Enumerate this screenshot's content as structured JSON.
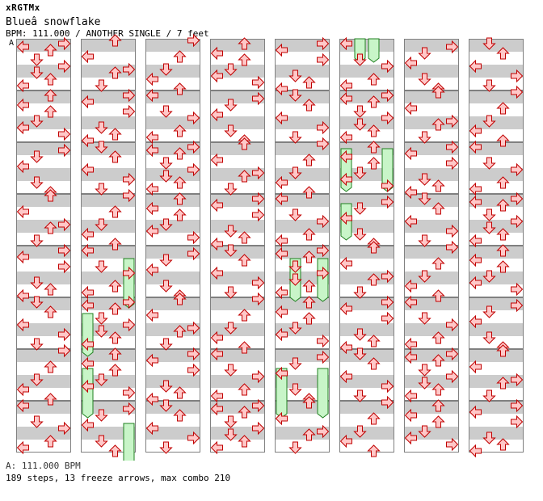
{
  "header": {
    "brand": "xRGTMx",
    "title": "Blueâ  snowflake",
    "info": "BPM: 111.000 / ANOTHER SINGLE / 7 feet"
  },
  "bpm_marker": "A",
  "colors": {
    "stripe_dark": "#cccccc",
    "stripe_light": "#ffffff",
    "arrow_fill": "#ffc8c8",
    "arrow_stroke": "#c00000",
    "freeze_fill": "#c8f5c8",
    "freeze_stroke": "#208020",
    "border": "#808080"
  },
  "chart": {
    "columns": 8,
    "measures_per_column": 8,
    "steps_per_measure": 16,
    "lanes": [
      "left",
      "down",
      "up",
      "right"
    ],
    "notes": [
      [
        [
          0,
          2,
          0
        ],
        [
          1,
          2,
          8
        ],
        [
          2,
          2,
          0
        ],
        [
          3,
          2,
          4
        ],
        [
          4,
          2,
          4
        ],
        [
          5,
          2,
          8
        ],
        [
          6,
          2,
          4
        ],
        [
          7,
          2,
          0
        ]
      ],
      [
        [
          0,
          0,
          4
        ],
        [
          0,
          1,
          8
        ],
        [
          0,
          2,
          4
        ],
        [
          0,
          3,
          2
        ],
        [
          1,
          0,
          4
        ],
        [
          1,
          1,
          8
        ],
        [
          1,
          2,
          4
        ],
        [
          1,
          3,
          4
        ],
        [
          2,
          0,
          4
        ],
        [
          2,
          1,
          8
        ],
        [
          2,
          2,
          4
        ],
        [
          2,
          3,
          2
        ],
        [
          3,
          0,
          4
        ],
        [
          3,
          1,
          8
        ],
        [
          3,
          2,
          4
        ],
        [
          3,
          3,
          4
        ],
        [
          4,
          0,
          4
        ],
        [
          4,
          1,
          8
        ],
        [
          4,
          2,
          4
        ],
        [
          4,
          3,
          4
        ],
        [
          5,
          0,
          4
        ],
        [
          5,
          1,
          8
        ],
        [
          5,
          2,
          4
        ],
        [
          5,
          3,
          4
        ],
        [
          6,
          0,
          4
        ],
        [
          6,
          1,
          8
        ],
        [
          6,
          2,
          4
        ],
        [
          6,
          3,
          4
        ],
        [
          7,
          0,
          4
        ],
        [
          7,
          1,
          4
        ],
        [
          7,
          2,
          4
        ],
        [
          7,
          3,
          4
        ]
      ],
      [
        [
          0,
          2,
          4
        ],
        [
          0,
          3,
          4
        ],
        [
          1,
          0,
          8
        ],
        [
          1,
          1,
          4
        ],
        [
          1,
          2,
          4
        ],
        [
          1,
          3,
          8
        ],
        [
          2,
          0,
          4
        ],
        [
          2,
          1,
          4
        ],
        [
          2,
          2,
          4
        ],
        [
          2,
          3,
          8
        ],
        [
          3,
          0,
          4
        ],
        [
          3,
          1,
          4
        ],
        [
          3,
          2,
          4
        ],
        [
          3,
          3,
          4
        ],
        [
          4,
          0,
          8
        ],
        [
          4,
          1,
          4
        ],
        [
          4,
          2,
          4
        ],
        [
          4,
          3,
          4
        ],
        [
          5,
          0,
          8
        ],
        [
          5,
          1,
          4
        ],
        [
          5,
          2,
          4
        ],
        [
          5,
          3,
          4
        ],
        [
          6,
          0,
          8
        ],
        [
          6,
          1,
          4
        ],
        [
          6,
          2,
          4
        ],
        [
          6,
          3,
          4
        ],
        [
          7,
          0,
          8
        ],
        [
          7,
          1,
          8
        ],
        [
          7,
          2,
          4
        ],
        [
          7,
          3,
          4
        ]
      ],
      [
        [
          0,
          0,
          8
        ],
        [
          0,
          1,
          4
        ],
        [
          0,
          2,
          4
        ],
        [
          0,
          3,
          4
        ],
        [
          1,
          0,
          4
        ],
        [
          1,
          1,
          4
        ],
        [
          1,
          2,
          4
        ],
        [
          1,
          3,
          4
        ],
        [
          2,
          0,
          4
        ],
        [
          2,
          1,
          8
        ],
        [
          2,
          2,
          4
        ],
        [
          2,
          3,
          4
        ],
        [
          3,
          0,
          8
        ],
        [
          3,
          1,
          4
        ],
        [
          3,
          2,
          4
        ],
        [
          3,
          3,
          4
        ],
        [
          4,
          0,
          4
        ],
        [
          4,
          1,
          4
        ],
        [
          4,
          2,
          4
        ],
        [
          4,
          3,
          4
        ],
        [
          5,
          0,
          4
        ],
        [
          5,
          1,
          4
        ],
        [
          5,
          2,
          4
        ],
        [
          5,
          3,
          4
        ],
        [
          6,
          0,
          4
        ],
        [
          6,
          1,
          4
        ],
        [
          6,
          2,
          4
        ],
        [
          6,
          3,
          4
        ],
        [
          7,
          0,
          4
        ],
        [
          7,
          1,
          4
        ],
        [
          7,
          2,
          4
        ],
        [
          7,
          3,
          4
        ]
      ],
      [
        [
          0,
          0,
          4
        ],
        [
          0,
          1,
          4
        ],
        [
          0,
          2,
          4
        ],
        [
          0,
          3,
          4
        ],
        [
          1,
          0,
          4
        ],
        [
          1,
          1,
          4
        ],
        [
          1,
          2,
          4
        ],
        [
          1,
          3,
          4
        ],
        [
          2,
          0,
          4
        ],
        [
          2,
          1,
          4
        ],
        [
          2,
          2,
          4
        ],
        [
          2,
          3,
          4
        ],
        [
          3,
          0,
          4
        ],
        [
          3,
          1,
          4
        ],
        [
          3,
          2,
          4
        ],
        [
          3,
          3,
          4
        ],
        [
          4,
          0,
          4
        ],
        [
          4,
          1,
          4
        ],
        [
          4,
          2,
          4
        ],
        [
          4,
          3,
          4
        ],
        [
          5,
          0,
          4
        ],
        [
          5,
          1,
          4
        ],
        [
          5,
          2,
          4
        ],
        [
          5,
          3,
          4
        ],
        [
          6,
          0,
          4
        ],
        [
          6,
          1,
          4
        ],
        [
          6,
          2,
          4
        ],
        [
          6,
          3,
          4
        ],
        [
          7,
          0,
          4
        ],
        [
          7,
          1,
          4
        ],
        [
          7,
          2,
          4
        ],
        [
          7,
          3,
          4
        ]
      ],
      [
        [
          0,
          0,
          4
        ],
        [
          0,
          1,
          4
        ],
        [
          0,
          2,
          4
        ],
        [
          0,
          3,
          4
        ],
        [
          1,
          0,
          4
        ],
        [
          1,
          1,
          4
        ],
        [
          1,
          2,
          4
        ],
        [
          1,
          3,
          4
        ],
        [
          2,
          0,
          4
        ],
        [
          2,
          1,
          4
        ],
        [
          2,
          2,
          4
        ],
        [
          2,
          3,
          4
        ],
        [
          3,
          0,
          4
        ],
        [
          3,
          1,
          4
        ],
        [
          3,
          2,
          4
        ],
        [
          3,
          3,
          4
        ],
        [
          4,
          0,
          4
        ],
        [
          4,
          1,
          4
        ],
        [
          4,
          2,
          4
        ],
        [
          4,
          3,
          4
        ],
        [
          5,
          0,
          4
        ],
        [
          5,
          1,
          4
        ],
        [
          5,
          2,
          4
        ],
        [
          5,
          3,
          4
        ],
        [
          6,
          0,
          4
        ],
        [
          6,
          1,
          4
        ],
        [
          6,
          2,
          4
        ],
        [
          6,
          3,
          4
        ],
        [
          7,
          0,
          4
        ],
        [
          7,
          1,
          4
        ],
        [
          7,
          2,
          4
        ],
        [
          7,
          3,
          4
        ]
      ],
      [
        [
          0,
          0,
          4
        ],
        [
          0,
          1,
          4
        ],
        [
          0,
          2,
          4
        ],
        [
          0,
          3,
          4
        ],
        [
          1,
          0,
          4
        ],
        [
          1,
          1,
          4
        ],
        [
          1,
          2,
          4
        ],
        [
          1,
          3,
          4
        ],
        [
          2,
          0,
          4
        ],
        [
          2,
          1,
          4
        ],
        [
          2,
          2,
          4
        ],
        [
          2,
          3,
          4
        ],
        [
          3,
          0,
          4
        ],
        [
          3,
          1,
          4
        ],
        [
          3,
          2,
          4
        ],
        [
          3,
          3,
          4
        ],
        [
          4,
          0,
          4
        ],
        [
          4,
          1,
          4
        ],
        [
          4,
          2,
          4
        ],
        [
          4,
          3,
          4
        ],
        [
          5,
          0,
          4
        ],
        [
          5,
          1,
          4
        ],
        [
          5,
          2,
          4
        ],
        [
          5,
          3,
          4
        ],
        [
          6,
          0,
          4
        ],
        [
          6,
          1,
          4
        ],
        [
          6,
          2,
          4
        ],
        [
          6,
          3,
          4
        ],
        [
          7,
          0,
          4
        ],
        [
          7,
          1,
          4
        ],
        [
          7,
          2,
          4
        ],
        [
          7,
          3,
          4
        ]
      ],
      [
        [
          0,
          0,
          4
        ],
        [
          0,
          1,
          4
        ],
        [
          0,
          2,
          4
        ],
        [
          0,
          3,
          4
        ],
        [
          1,
          0,
          4
        ],
        [
          1,
          1,
          4
        ],
        [
          1,
          2,
          4
        ],
        [
          1,
          3,
          4
        ],
        [
          2,
          0,
          4
        ],
        [
          2,
          1,
          4
        ],
        [
          2,
          2,
          4
        ],
        [
          2,
          3,
          4
        ],
        [
          3,
          0,
          4
        ],
        [
          3,
          1,
          4
        ],
        [
          3,
          2,
          4
        ],
        [
          3,
          3,
          4
        ],
        [
          4,
          0,
          4
        ],
        [
          4,
          1,
          4
        ],
        [
          4,
          2,
          4
        ],
        [
          4,
          3,
          4
        ],
        [
          5,
          0,
          4
        ],
        [
          5,
          1,
          4
        ],
        [
          5,
          2,
          4
        ],
        [
          5,
          3,
          4
        ],
        [
          6,
          0,
          4
        ],
        [
          6,
          1,
          4
        ],
        [
          6,
          2,
          4
        ],
        [
          6,
          3,
          4
        ],
        [
          7,
          0,
          4
        ],
        [
          7,
          1,
          4
        ],
        [
          7,
          2,
          4
        ],
        [
          7,
          3,
          4
        ]
      ]
    ]
  },
  "footer": {
    "bpm_legend": "A: 111.000 BPM",
    "summary": "189 steps, 13 freeze arrows, max combo 210"
  }
}
